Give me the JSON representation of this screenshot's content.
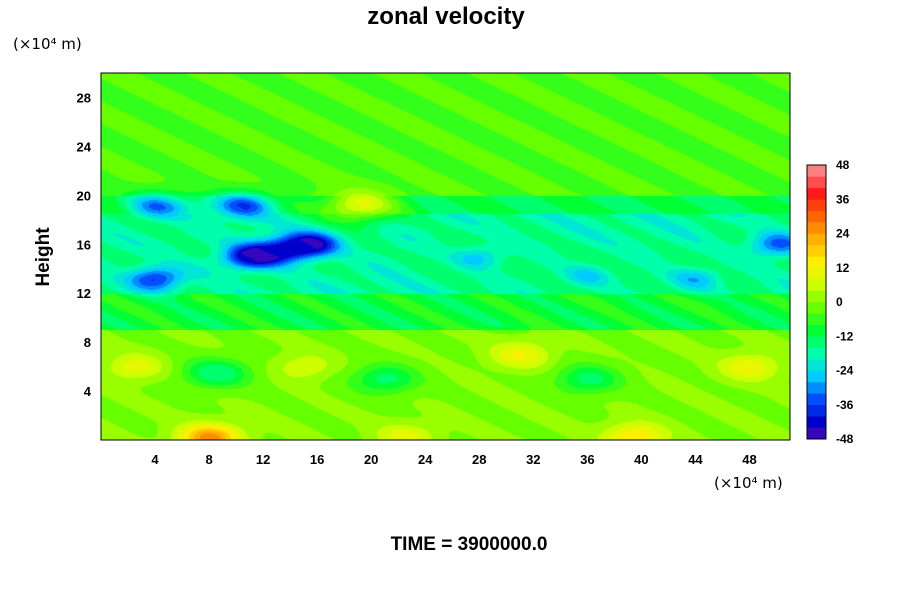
{
  "chart_data": {
    "type": "heatmap",
    "title": "zonal velocity",
    "ylabel": "Height",
    "x_unit": "(×10⁴ m)",
    "y_unit": "(×10⁴ m)",
    "xlim": [
      0,
      51
    ],
    "ylim": [
      0,
      30
    ],
    "x_ticks": [
      "4",
      "8",
      "12",
      "16",
      "20",
      "24",
      "28",
      "32",
      "36",
      "40",
      "44",
      "48"
    ],
    "y_ticks": [
      "4",
      "8",
      "12",
      "16",
      "20",
      "24",
      "28"
    ],
    "colorbar": {
      "min": -48,
      "max": 48,
      "step": 4,
      "tick_labels": [
        "48",
        "36",
        "24",
        "12",
        "0",
        "-12",
        "-24",
        "-36",
        "-48"
      ],
      "colormap": [
        "#6a0dad",
        "#0000cc",
        "#0050ff",
        "#00ccff",
        "#00ffaa",
        "#00ff33",
        "#66ff00",
        "#ccff00",
        "#ffee00",
        "#ffb000",
        "#ff6600",
        "#ff1a1a",
        "#ff8080"
      ]
    },
    "field": {
      "background_value": -2,
      "bands": [
        {
          "y_range": [
            20,
            30
          ],
          "value": -2
        },
        {
          "y_range": [
            18.5,
            20
          ],
          "value": -10
        },
        {
          "y_range": [
            12,
            18.5
          ],
          "value": -16
        },
        {
          "y_range": [
            9,
            12
          ],
          "value": -8
        },
        {
          "y_range": [
            0,
            9
          ],
          "value": 2
        }
      ],
      "features": [
        {
          "x": 2.5,
          "y": 6,
          "value": 12
        },
        {
          "x": 8.5,
          "y": 5.5,
          "value": -14
        },
        {
          "x": 15,
          "y": 6,
          "value": 10
        },
        {
          "x": 21,
          "y": 5,
          "value": -12
        },
        {
          "x": 31,
          "y": 7,
          "value": 14
        },
        {
          "x": 36,
          "y": 5,
          "value": -12
        },
        {
          "x": 48,
          "y": 6,
          "value": 14
        },
        {
          "x": 8,
          "y": 0.2,
          "value": 28
        },
        {
          "x": 39.5,
          "y": 0.3,
          "value": 18
        },
        {
          "x": 22.5,
          "y": 0.3,
          "value": 12
        },
        {
          "x": 4,
          "y": 13.2,
          "value": -36
        },
        {
          "x": 11,
          "y": 15,
          "value": -40
        },
        {
          "x": 15.5,
          "y": 16,
          "value": -42
        },
        {
          "x": 10.5,
          "y": 19.1,
          "value": -32
        },
        {
          "x": 4,
          "y": 19.1,
          "value": -28
        },
        {
          "x": 50,
          "y": 16,
          "value": -32
        },
        {
          "x": 19,
          "y": 19.2,
          "value": 12
        },
        {
          "x": 28,
          "y": 15,
          "value": -24
        },
        {
          "x": 36,
          "y": 13.5,
          "value": -22
        },
        {
          "x": 44,
          "y": 13.2,
          "value": -24
        }
      ]
    }
  },
  "footer": {
    "time_label": "TIME = 3900000.0"
  }
}
